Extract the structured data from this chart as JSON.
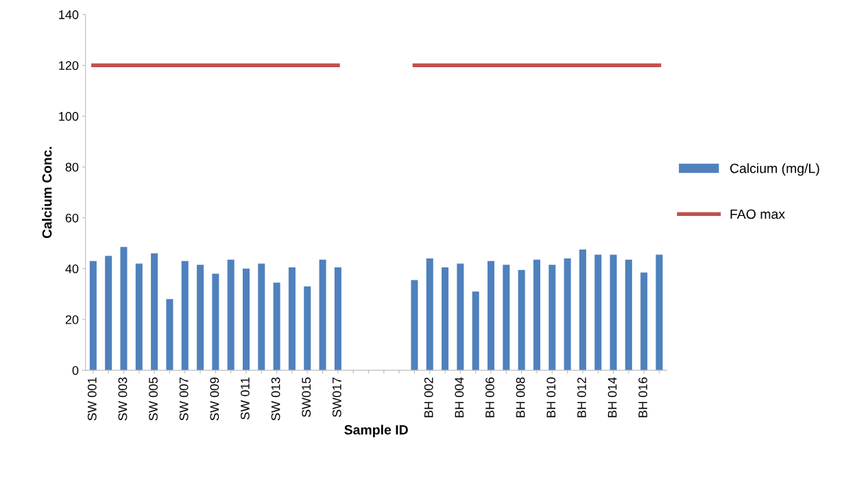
{
  "chart_data": {
    "type": "bar",
    "xlabel": "Sample ID",
    "ylabel": "Calcium Conc.",
    "categories": [
      "SW 001",
      null,
      "SW 003",
      null,
      "SW 005",
      null,
      "SW 007",
      null,
      "SW 009",
      null,
      "SW 011",
      null,
      "SW 013",
      null,
      "SW015",
      null,
      "SW017",
      null,
      null,
      null,
      null,
      null,
      "BH 002",
      null,
      "BH 004",
      null,
      "BH 006",
      null,
      "BH 008",
      null,
      "BH 010",
      null,
      "BH 012",
      null,
      "BH 014",
      null,
      "BH 016",
      null
    ],
    "series": [
      {
        "name": "Calcium (mg/L)",
        "color": "#4f81bd",
        "values": [
          43,
          45,
          48.5,
          42,
          46,
          28,
          43,
          41.5,
          38,
          43.5,
          40,
          42,
          34.5,
          40.5,
          33,
          43.5,
          40.5,
          null,
          null,
          null,
          null,
          35.5,
          44,
          40.5,
          42,
          31,
          43,
          41.5,
          39.5,
          43.5,
          41.5,
          44,
          47.5,
          45.5,
          45.5,
          43.5,
          38.5,
          45.5
        ]
      },
      {
        "name": "FAO max",
        "type": "line",
        "color": "#c0504d",
        "values": [
          120,
          120,
          120,
          120,
          120,
          120,
          120,
          120,
          120,
          120,
          120,
          120,
          120,
          120,
          120,
          120,
          120,
          null,
          null,
          null,
          null,
          120,
          120,
          120,
          120,
          120,
          120,
          120,
          120,
          120,
          120,
          120,
          120,
          120,
          120,
          120,
          120,
          120
        ]
      }
    ],
    "ylim": [
      0,
      140
    ],
    "yticks": [
      0,
      20,
      40,
      60,
      80,
      100,
      120,
      140
    ],
    "grid": false,
    "legend": "right"
  }
}
